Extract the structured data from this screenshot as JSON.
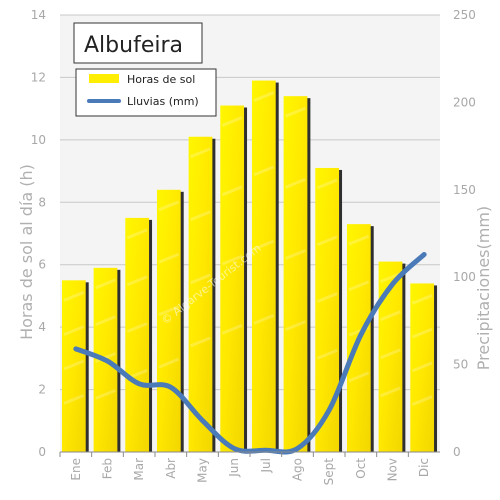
{
  "chart_data": {
    "type": "bar",
    "title": "Albufeira",
    "categories": [
      "Ene",
      "Feb",
      "Mar",
      "Abr",
      "May",
      "Jun",
      "Jul",
      "Ago",
      "Sept",
      "Oct",
      "Nov",
      "Dic"
    ],
    "series": [
      {
        "name": "Horas de sol",
        "type": "bar",
        "axis": "left",
        "color": "#ffee00",
        "values": [
          5.5,
          5.9,
          7.5,
          8.4,
          10.1,
          11.1,
          11.9,
          11.4,
          9.1,
          7.3,
          6.1,
          5.4
        ]
      },
      {
        "name": "Lluvias (mm)",
        "type": "line",
        "axis": "right",
        "color": "#4a7ab8",
        "values": [
          59,
          52,
          39,
          37,
          18,
          2,
          1,
          2,
          24,
          67,
          96,
          113
        ]
      }
    ],
    "ylabel": "Horas de sol al día (h)",
    "ylabel_right": "Precipitaciones(mm)",
    "ylim": [
      0,
      14
    ],
    "ylim_right": [
      0,
      250
    ],
    "yticks": [
      0,
      2,
      4,
      6,
      8,
      10,
      12,
      14
    ],
    "yticks_right": [
      0,
      50,
      100,
      150,
      200,
      250
    ],
    "grid": true,
    "legend_position": "top-left",
    "watermark": "© Algarve-Tourist.com"
  }
}
